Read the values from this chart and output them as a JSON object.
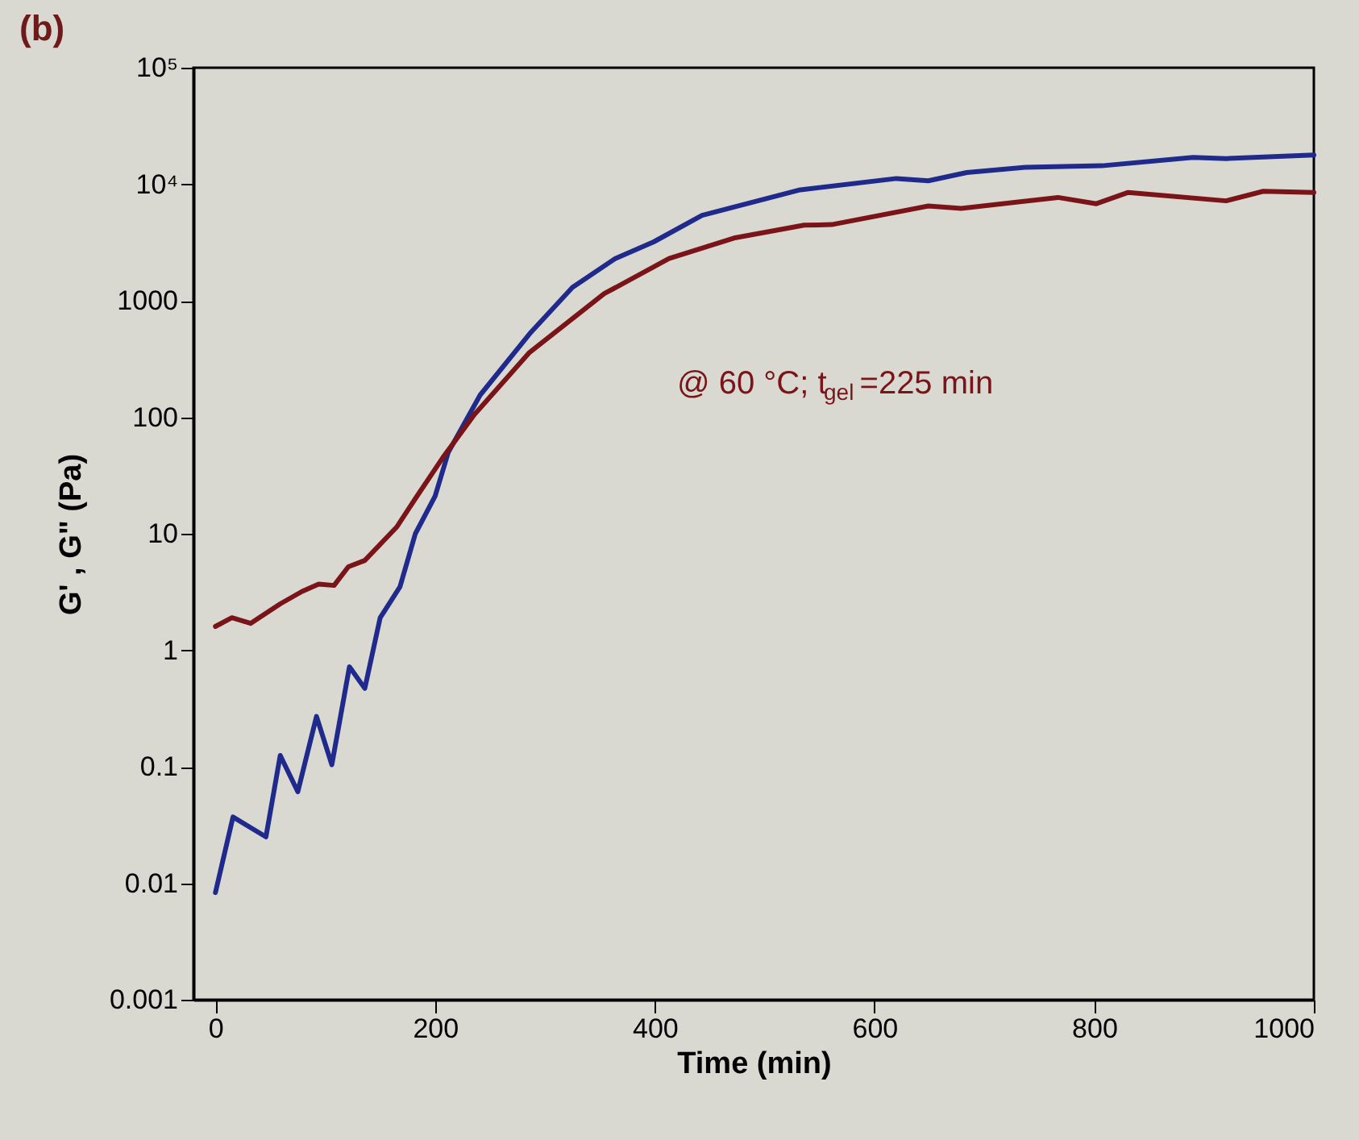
{
  "chart_data": {
    "type": "line",
    "title": "(b)",
    "xlabel": "Time (min)",
    "ylabel": "G' , G\" (Pa)",
    "log": "y",
    "grid": false,
    "marker": "none",
    "line_style": "solid",
    "xlim": [
      -20,
      1000
    ],
    "xticks": [
      0,
      200,
      400,
      600,
      800,
      1000
    ],
    "ylim": [
      0.001,
      100000
    ],
    "yticks": [
      0.001,
      0.01,
      0.1,
      1,
      10,
      100,
      1000,
      {
        "value": 10000,
        "label": "10⁴"
      },
      {
        "value": 100000,
        "label": "10⁵"
      }
    ],
    "annotations": [
      "@ 60 °C; t$_{gel}$=225 min"
    ],
    "series": [
      {
        "color": "#1f2a8c",
        "x": [
          0,
          16,
          46,
          59,
          75,
          92,
          106,
          122,
          136,
          150,
          168,
          182,
          200,
          212,
          241,
          286,
          325,
          364,
          399,
          443,
          531,
          620,
          649,
          684,
          738,
          807,
          890,
          920,
          1000
        ],
        "values": [
          0.0083,
          0.037,
          0.025,
          0.125,
          0.061,
          0.27,
          0.104,
          0.72,
          0.47,
          1.9,
          3.5,
          10,
          21,
          50,
          155,
          520,
          1300,
          2300,
          3200,
          5400,
          8900,
          11200,
          10700,
          12600,
          14000,
          14400,
          17000,
          16600,
          17800
        ]
      },
      {
        "color": "#7a1418",
        "x": [
          0,
          15,
          32,
          59,
          79,
          94,
          108,
          121,
          136,
          165,
          182,
          207,
          236,
          286,
          354,
          413,
          472,
          536,
          561,
          649,
          679,
          767,
          802,
          831,
          920,
          954,
          1000
        ],
        "values": [
          1.6,
          1.9,
          1.7,
          2.5,
          3.2,
          3.7,
          3.6,
          5.2,
          5.9,
          11.4,
          20,
          45,
          106,
          360,
          1150,
          2300,
          3450,
          4450,
          4500,
          6500,
          6200,
          7700,
          6800,
          8500,
          7200,
          8700,
          8500
        ]
      }
    ]
  }
}
